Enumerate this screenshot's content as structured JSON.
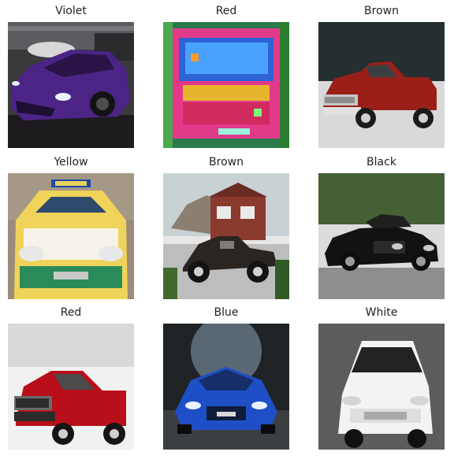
{
  "grid": {
    "items": [
      {
        "label": "Violet",
        "color": "#5b2a9a"
      },
      {
        "label": "Red",
        "color": "#e23b6d"
      },
      {
        "label": "Brown",
        "color": "#a5231c"
      },
      {
        "label": "Yellow",
        "color": "#e9d23a"
      },
      {
        "label": "Brown",
        "color": "#2c2622"
      },
      {
        "label": "Black",
        "color": "#121212"
      },
      {
        "label": "Red",
        "color": "#c4121c"
      },
      {
        "label": "Blue",
        "color": "#1f4fc6"
      },
      {
        "label": "White",
        "color": "#f2f2f2"
      }
    ]
  }
}
